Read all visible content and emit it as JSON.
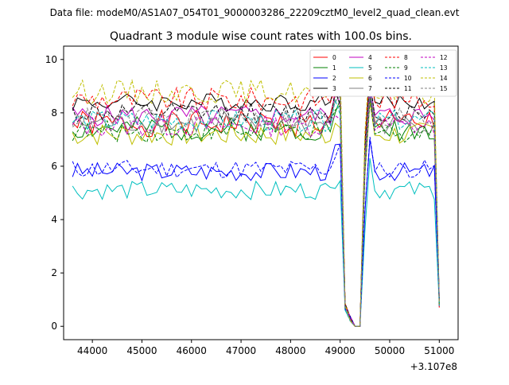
{
  "figure": {
    "suptitle": "Data file: modeM0/AS1A07_054T01_9000003286_22209cztM0_level2_quad_clean.evt"
  },
  "chart_data": {
    "type": "line",
    "title": "Quadrant 3 module wise count rates with 100.0s bins.",
    "xlabel": "",
    "ylabel": "",
    "x_offset_label": "+3.107e8",
    "xlim": [
      43420,
      51380
    ],
    "ylim": [
      -0.5,
      10.5
    ],
    "x_ticks": [
      44000,
      45000,
      46000,
      47000,
      48000,
      49000,
      50000,
      51000
    ],
    "x_tick_labels": [
      "44000",
      "45000",
      "46000",
      "47000",
      "48000",
      "49000",
      "50000",
      "51000"
    ],
    "y_ticks": [
      0,
      2,
      4,
      6,
      8,
      10
    ],
    "y_tick_labels": [
      "0",
      "2",
      "4",
      "6",
      "8",
      "10"
    ],
    "x": {
      "start": 43600,
      "step": 100,
      "count": 75
    },
    "legend_position": "top-right",
    "legend_columns": 4,
    "series": [
      {
        "name": "0",
        "color": "#ff0000",
        "dash": "solid",
        "base": 7.6,
        "amp": 0.5,
        "seed": 1,
        "drop": 0.0
      },
      {
        "name": "1",
        "color": "#008000",
        "dash": "solid",
        "base": 7.4,
        "amp": 0.45,
        "seed": 2,
        "drop": 0.0
      },
      {
        "name": "2",
        "color": "#0000ff",
        "dash": "solid",
        "base": 5.8,
        "amp": 0.35,
        "seed": 3,
        "drop": 0.0
      },
      {
        "name": "3",
        "color": "#000000",
        "dash": "solid",
        "base": 8.4,
        "amp": 0.35,
        "seed": 4,
        "drop": 0.0
      },
      {
        "name": "4",
        "color": "#c000c0",
        "dash": "solid",
        "base": 7.9,
        "amp": 0.4,
        "seed": 5,
        "drop": 0.0
      },
      {
        "name": "5",
        "color": "#00bfbf",
        "dash": "solid",
        "base": 5.1,
        "amp": 0.35,
        "seed": 6,
        "drop": 0.0
      },
      {
        "name": "6",
        "color": "#bfbf00",
        "dash": "solid",
        "base": 7.2,
        "amp": 0.45,
        "seed": 7,
        "drop": 0.0
      },
      {
        "name": "7",
        "color": "#808080",
        "dash": "solid",
        "base": 7.6,
        "amp": 0.4,
        "seed": 8,
        "drop": 0.0
      },
      {
        "name": "8",
        "color": "#ff0000",
        "dash": "dashed",
        "base": 8.5,
        "amp": 0.45,
        "seed": 9,
        "drop": 0.0
      },
      {
        "name": "9",
        "color": "#008000",
        "dash": "dashed",
        "base": 7.3,
        "amp": 0.4,
        "seed": 10,
        "drop": 0.0
      },
      {
        "name": "10",
        "color": "#0000ff",
        "dash": "dashed",
        "base": 5.9,
        "amp": 0.35,
        "seed": 11,
        "drop": 0.0
      },
      {
        "name": "11",
        "color": "#000000",
        "dash": "dashed",
        "base": 8.0,
        "amp": 0.4,
        "seed": 12,
        "drop": 0.0
      },
      {
        "name": "12",
        "color": "#c000c0",
        "dash": "dashed",
        "base": 7.5,
        "amp": 0.4,
        "seed": 13,
        "drop": 0.0
      },
      {
        "name": "13",
        "color": "#00bfbf",
        "dash": "dashed",
        "base": 7.7,
        "amp": 0.4,
        "seed": 14,
        "drop": 0.0
      },
      {
        "name": "14",
        "color": "#bfbf00",
        "dash": "dashed",
        "base": 8.8,
        "amp": 0.45,
        "seed": 15,
        "drop": 0.0
      },
      {
        "name": "15",
        "color": "#808080",
        "dash": "dashed",
        "base": 7.8,
        "amp": 0.4,
        "seed": 16,
        "drop": 0.0
      }
    ],
    "gaps": [
      {
        "x_range": [
          49100,
          49400
        ],
        "values": [
          0.6,
          0.0,
          0.0
        ]
      },
      {
        "x_range": [
          50900,
          51000
        ],
        "values": [
          0.8
        ]
      }
    ]
  }
}
